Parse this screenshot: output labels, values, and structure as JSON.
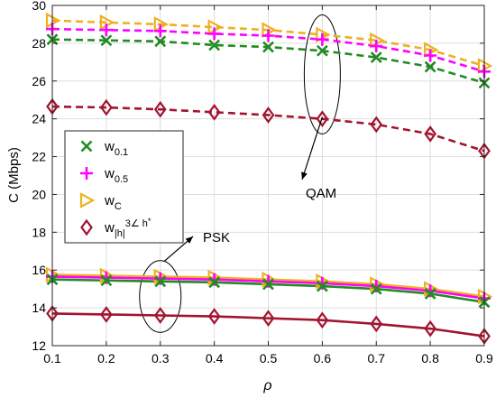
{
  "chart_data": {
    "type": "line",
    "xlabel": "ρ",
    "ylabel": "C (Mbps)",
    "xlim": [
      0.1,
      0.9
    ],
    "ylim": [
      12,
      30
    ],
    "x_ticks": [
      "0.1",
      "0.2",
      "0.3",
      "0.4",
      "0.5",
      "0.6",
      "0.7",
      "0.8",
      "0.9"
    ],
    "y_ticks": [
      "12",
      "14",
      "16",
      "18",
      "20",
      "22",
      "24",
      "26",
      "28",
      "30"
    ],
    "grid": true,
    "legend_position": "middle-left",
    "x": [
      0.1,
      0.2,
      0.3,
      0.4,
      0.5,
      0.6,
      0.7,
      0.8,
      0.9
    ],
    "groups": [
      {
        "name": "QAM",
        "line_style": "dashed",
        "series": [
          {
            "name": "w_C",
            "color": "#EDB120",
            "marker": "triangle-right",
            "values": [
              29.2,
              29.1,
              29.0,
              28.85,
              28.7,
              28.45,
              28.15,
              27.65,
              26.8
            ]
          },
          {
            "name": "w_0.5",
            "color": "#FF00FF",
            "marker": "plus",
            "values": [
              28.75,
              28.7,
              28.65,
              28.5,
              28.4,
              28.2,
              27.85,
              27.35,
              26.5
            ]
          },
          {
            "name": "w_0.1",
            "color": "#228B22",
            "marker": "x",
            "values": [
              28.2,
              28.15,
              28.1,
              27.9,
              27.8,
              27.6,
              27.25,
              26.75,
              25.9
            ]
          },
          {
            "name": "w_|h|^3∠h*",
            "color": "#A2142F",
            "marker": "diamond",
            "values": [
              24.65,
              24.6,
              24.5,
              24.35,
              24.2,
              24.0,
              23.7,
              23.2,
              22.3
            ]
          }
        ]
      },
      {
        "name": "PSK",
        "line_style": "solid",
        "series": [
          {
            "name": "w_C",
            "color": "#EDB120",
            "marker": "triangle-right",
            "values": [
              15.75,
              15.7,
              15.65,
              15.6,
              15.5,
              15.4,
              15.25,
              15.0,
              14.6
            ]
          },
          {
            "name": "w_0.5",
            "color": "#FF00FF",
            "marker": "plus",
            "values": [
              15.65,
              15.6,
              15.55,
              15.5,
              15.4,
              15.3,
              15.15,
              14.9,
              14.5
            ]
          },
          {
            "name": "w_0.1",
            "color": "#228B22",
            "marker": "x",
            "values": [
              15.5,
              15.45,
              15.4,
              15.35,
              15.25,
              15.15,
              15.0,
              14.75,
              14.3
            ]
          },
          {
            "name": "w_|h|^3∠h*",
            "color": "#A2142F",
            "marker": "diamond",
            "values": [
              13.7,
              13.65,
              13.6,
              13.55,
              13.45,
              13.35,
              13.15,
              12.9,
              12.5
            ]
          }
        ]
      }
    ],
    "annotations": [
      {
        "text": "QAM",
        "target_x": 0.6,
        "target_y": 26.5,
        "ellipse_y_range": [
          23.2,
          29.5
        ]
      },
      {
        "text": "PSK",
        "target_x": 0.3,
        "target_y": 14.55,
        "ellipse_y_range": [
          12.7,
          16.5
        ]
      }
    ],
    "legend_entries": [
      {
        "marker": "x",
        "color": "#228B22",
        "base": "w",
        "sub": "0.1",
        "sup": ""
      },
      {
        "marker": "plus",
        "color": "#FF00FF",
        "base": "w",
        "sub": "0.5",
        "sup": ""
      },
      {
        "marker": "triangle-right",
        "color": "#EDB120",
        "base": "w",
        "sub": "C",
        "sup": ""
      },
      {
        "marker": "diamond",
        "color": "#A2142F",
        "base": "w",
        "sub": "|h|",
        "sup": "3",
        "tail": "∠ h",
        "tail_sup": "*"
      }
    ]
  }
}
